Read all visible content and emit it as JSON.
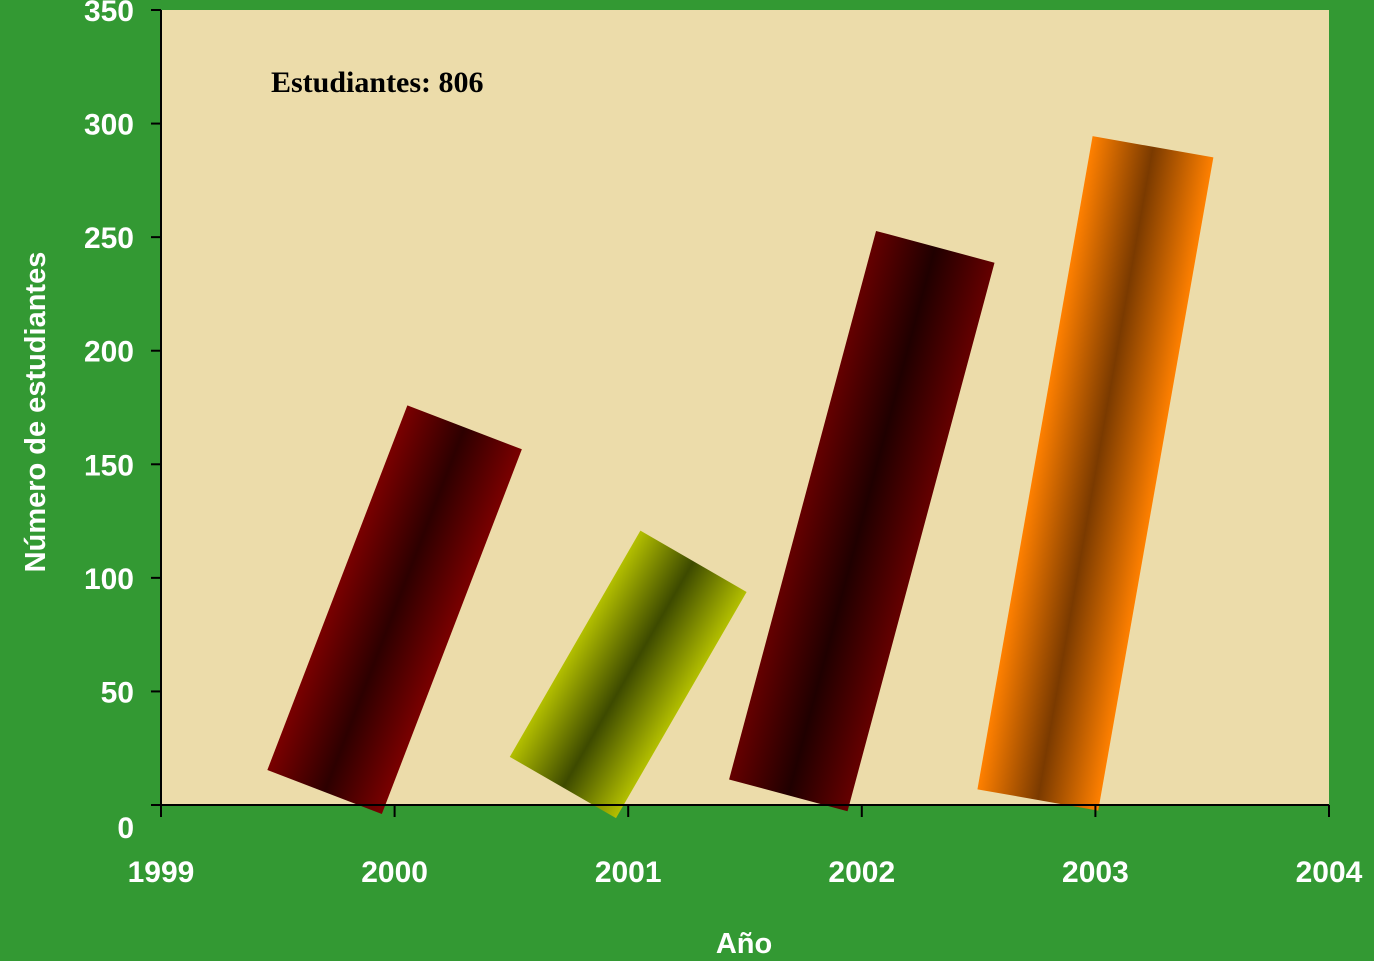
{
  "chart_data": {
    "type": "bar",
    "categories": [
      "2000",
      "2001",
      "2002",
      "2003"
    ],
    "values": [
      172,
      115,
      250,
      292
    ],
    "bar_tilt_degrees": [
      21,
      30,
      15,
      10
    ],
    "colors": [
      "#7a0000",
      "#b3bf00",
      "#650000",
      "#ff8000"
    ],
    "shade_colors": [
      "#2d0000",
      "#3d4a00",
      "#200000",
      "#7a3a00"
    ],
    "xlabel": "Año",
    "ylabel": "Número de estudiantes",
    "xlim": [
      1999,
      2004
    ],
    "ylim": [
      0,
      350
    ],
    "x_ticks": [
      "1999",
      "2000",
      "2001",
      "2002",
      "2003",
      "2004"
    ],
    "y_ticks": [
      "0",
      "50",
      "100",
      "150",
      "200",
      "250",
      "300",
      "350"
    ],
    "annotation": "Estudiantes: 806",
    "grid": false,
    "plot_background": "#ecdcaa",
    "page_background": "#339933"
  }
}
